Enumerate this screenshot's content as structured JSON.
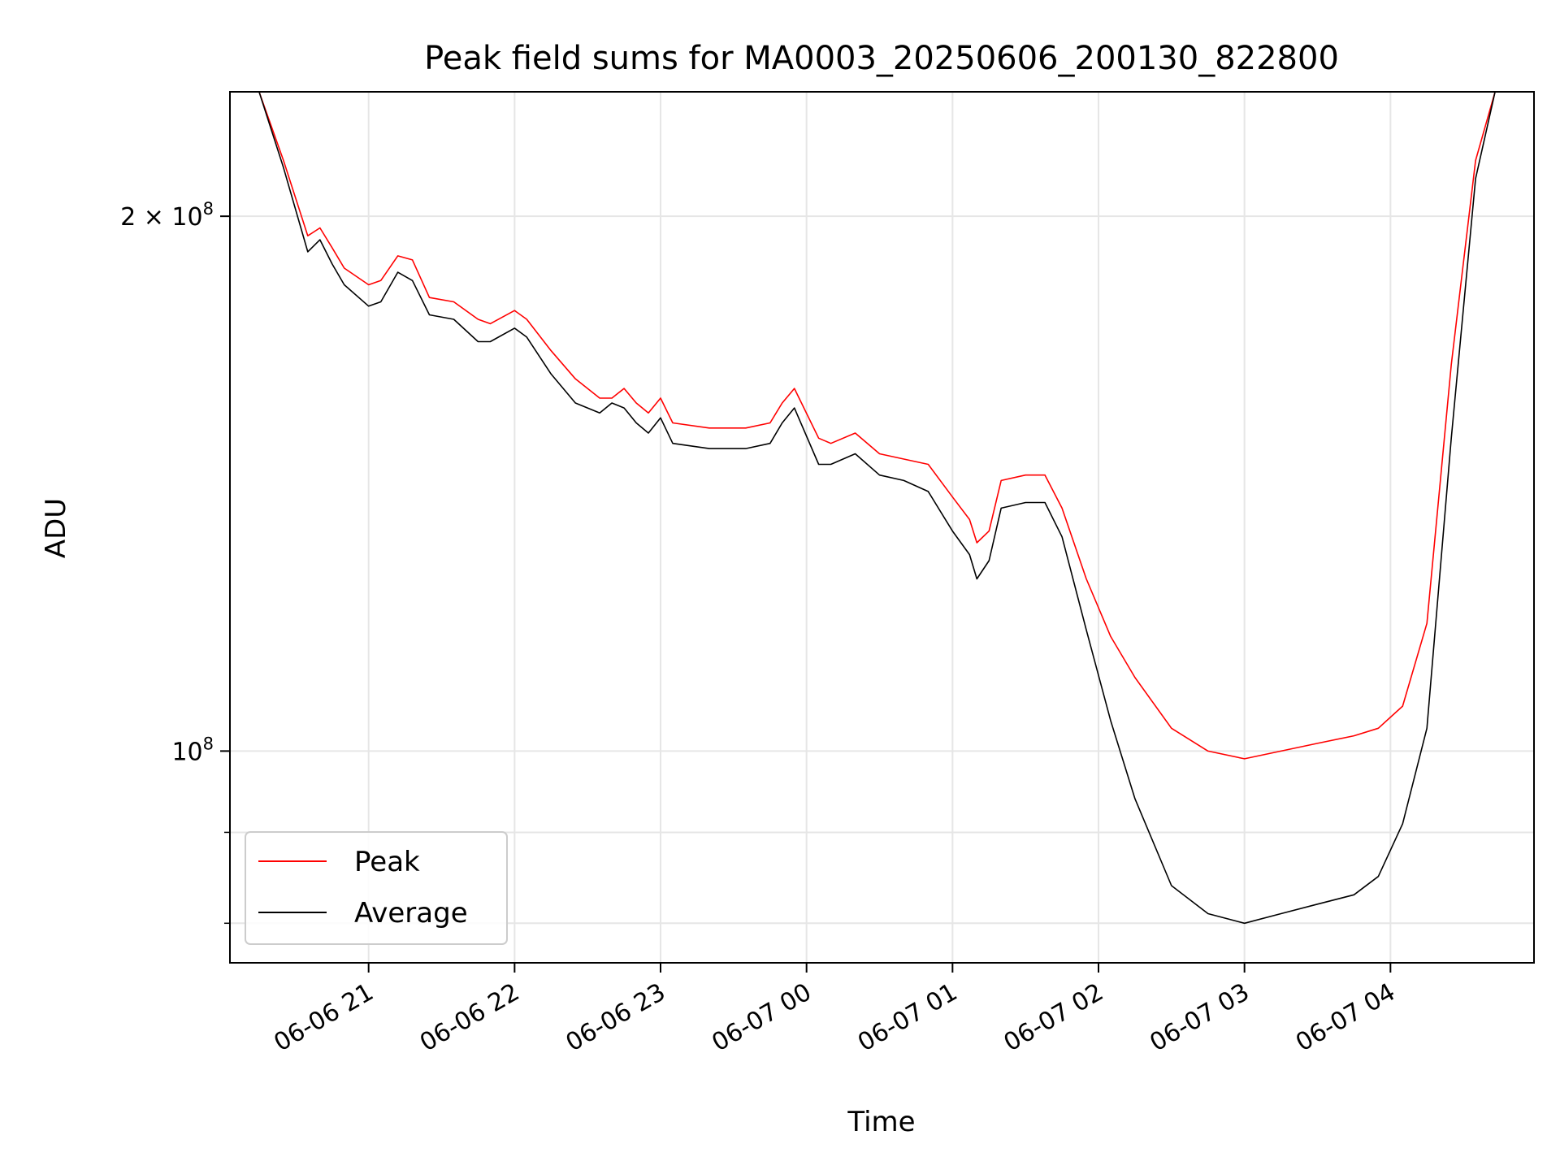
{
  "chart_data": {
    "type": "line",
    "title": "Peak field sums for MA0003_20250606_200130_822800",
    "xlabel": "Time",
    "ylabel": "ADU",
    "yscale": "log",
    "ylim": [
      76000000,
      235000000
    ],
    "xlim": [
      "2025-06-06 20:03",
      "2025-06-07 04:59"
    ],
    "grid": true,
    "legend_position": "lower-left",
    "x_ticks": [
      {
        "x": "2025-06-06 21:00",
        "label": "06-06 21"
      },
      {
        "x": "2025-06-06 22:00",
        "label": "06-06 22"
      },
      {
        "x": "2025-06-06 23:00",
        "label": "06-06 23"
      },
      {
        "x": "2025-06-07 00:00",
        "label": "06-07 00"
      },
      {
        "x": "2025-06-07 01:00",
        "label": "06-07 01"
      },
      {
        "x": "2025-06-07 02:00",
        "label": "06-07 02"
      },
      {
        "x": "2025-06-07 03:00",
        "label": "06-07 03"
      },
      {
        "x": "2025-06-07 04:00",
        "label": "06-07 04"
      }
    ],
    "y_ticks": [
      {
        "y": 200000000,
        "base": "2 × 10",
        "exp": "8"
      },
      {
        "y": 100000000,
        "base": "10",
        "exp": "8"
      }
    ],
    "series": [
      {
        "name": "Peak",
        "color": "#ff0000",
        "x": [
          "2025-06-06 20:15",
          "2025-06-06 20:25",
          "2025-06-06 20:35",
          "2025-06-06 20:40",
          "2025-06-06 20:45",
          "2025-06-06 20:50",
          "2025-06-06 21:00",
          "2025-06-06 21:05",
          "2025-06-06 21:12",
          "2025-06-06 21:18",
          "2025-06-06 21:25",
          "2025-06-06 21:35",
          "2025-06-06 21:45",
          "2025-06-06 21:50",
          "2025-06-06 22:00",
          "2025-06-06 22:05",
          "2025-06-06 22:15",
          "2025-06-06 22:25",
          "2025-06-06 22:35",
          "2025-06-06 22:40",
          "2025-06-06 22:45",
          "2025-06-06 22:50",
          "2025-06-06 22:55",
          "2025-06-06 23:00",
          "2025-06-06 23:05",
          "2025-06-06 23:20",
          "2025-06-06 23:35",
          "2025-06-06 23:45",
          "2025-06-06 23:50",
          "2025-06-06 23:55",
          "2025-06-07 00:05",
          "2025-06-07 00:10",
          "2025-06-07 00:20",
          "2025-06-07 00:30",
          "2025-06-07 00:40",
          "2025-06-07 00:50",
          "2025-06-07 01:00",
          "2025-06-07 01:07",
          "2025-06-07 01:10",
          "2025-06-07 01:15",
          "2025-06-07 01:20",
          "2025-06-07 01:30",
          "2025-06-07 01:38",
          "2025-06-07 01:45",
          "2025-06-07 01:55",
          "2025-06-07 02:05",
          "2025-06-07 02:15",
          "2025-06-07 02:30",
          "2025-06-07 02:45",
          "2025-06-07 03:00",
          "2025-06-07 03:15",
          "2025-06-07 03:30",
          "2025-06-07 03:45",
          "2025-06-07 03:55",
          "2025-06-07 04:05",
          "2025-06-07 04:15",
          "2025-06-07 04:25",
          "2025-06-07 04:35",
          "2025-06-07 04:43"
        ],
        "y": [
          235000000,
          215000000,
          195000000,
          197000000,
          192000000,
          187000000,
          183000000,
          184000000,
          190000000,
          189000000,
          180000000,
          179000000,
          175000000,
          174000000,
          177000000,
          175000000,
          168000000,
          162000000,
          158000000,
          158000000,
          160000000,
          157000000,
          155000000,
          158000000,
          153000000,
          152000000,
          152000000,
          153000000,
          157000000,
          160000000,
          150000000,
          149000000,
          151000000,
          147000000,
          146000000,
          145000000,
          139000000,
          135000000,
          131000000,
          133000000,
          142000000,
          143000000,
          143000000,
          137000000,
          125000000,
          116000000,
          110000000,
          103000000,
          100000000,
          99000000,
          100000000,
          101000000,
          102000000,
          103000000,
          106000000,
          118000000,
          165000000,
          215000000,
          235000000
        ]
      },
      {
        "name": "Average",
        "color": "#000000",
        "x": [
          "2025-06-06 20:15",
          "2025-06-06 20:25",
          "2025-06-06 20:35",
          "2025-06-06 20:40",
          "2025-06-06 20:45",
          "2025-06-06 20:50",
          "2025-06-06 21:00",
          "2025-06-06 21:05",
          "2025-06-06 21:12",
          "2025-06-06 21:18",
          "2025-06-06 21:25",
          "2025-06-06 21:35",
          "2025-06-06 21:45",
          "2025-06-06 21:50",
          "2025-06-06 22:00",
          "2025-06-06 22:05",
          "2025-06-06 22:15",
          "2025-06-06 22:25",
          "2025-06-06 22:35",
          "2025-06-06 22:40",
          "2025-06-06 22:45",
          "2025-06-06 22:50",
          "2025-06-06 22:55",
          "2025-06-06 23:00",
          "2025-06-06 23:05",
          "2025-06-06 23:20",
          "2025-06-06 23:35",
          "2025-06-06 23:45",
          "2025-06-06 23:50",
          "2025-06-06 23:55",
          "2025-06-07 00:05",
          "2025-06-07 00:10",
          "2025-06-07 00:20",
          "2025-06-07 00:30",
          "2025-06-07 00:40",
          "2025-06-07 00:50",
          "2025-06-07 01:00",
          "2025-06-07 01:07",
          "2025-06-07 01:10",
          "2025-06-07 01:15",
          "2025-06-07 01:20",
          "2025-06-07 01:30",
          "2025-06-07 01:38",
          "2025-06-07 01:45",
          "2025-06-07 01:55",
          "2025-06-07 02:05",
          "2025-06-07 02:15",
          "2025-06-07 02:30",
          "2025-06-07 02:45",
          "2025-06-07 03:00",
          "2025-06-07 03:15",
          "2025-06-07 03:30",
          "2025-06-07 03:45",
          "2025-06-07 03:55",
          "2025-06-07 04:05",
          "2025-06-07 04:15",
          "2025-06-07 04:25",
          "2025-06-07 04:35",
          "2025-06-07 04:43"
        ],
        "y": [
          235000000,
          213000000,
          191000000,
          194000000,
          188000000,
          183000000,
          178000000,
          179000000,
          186000000,
          184000000,
          176000000,
          175000000,
          170000000,
          170000000,
          173000000,
          171000000,
          163000000,
          157000000,
          155000000,
          157000000,
          156000000,
          153000000,
          151000000,
          154000000,
          149000000,
          148000000,
          148000000,
          149000000,
          153000000,
          156000000,
          145000000,
          145000000,
          147000000,
          143000000,
          142000000,
          140000000,
          133000000,
          129000000,
          125000000,
          128000000,
          137000000,
          138000000,
          138000000,
          132000000,
          117000000,
          104000000,
          94000000,
          84000000,
          81000000,
          80000000,
          81000000,
          82000000,
          83000000,
          85000000,
          91000000,
          103000000,
          150000000,
          210000000,
          235000000
        ]
      }
    ]
  }
}
